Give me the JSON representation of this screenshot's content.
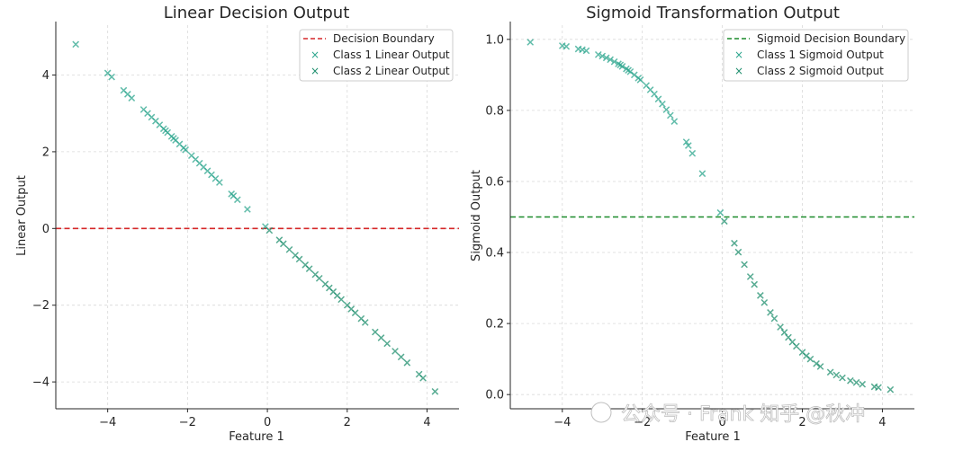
{
  "chart_data": [
    {
      "type": "scatter",
      "title": "Linear Decision Output",
      "xlabel": "Feature 1",
      "ylabel": "Linear Output",
      "xlim": [
        -5.3,
        4.8
      ],
      "ylim": [
        -4.7,
        5.3
      ],
      "xticks": [
        -4,
        -2,
        0,
        2,
        4
      ],
      "yticks": [
        -4,
        -2,
        0,
        2,
        4
      ],
      "xtick_labels": [
        "−4",
        "−2",
        "0",
        "2",
        "4"
      ],
      "ytick_labels": [
        "−4",
        "−2",
        "0",
        "2",
        "4"
      ],
      "grid": true,
      "legend_position": "top-right",
      "boundary": {
        "label": "Decision Boundary",
        "y": 0,
        "color": "#d62728",
        "style": "dashed"
      },
      "series": [
        {
          "name": "Class 1 Linear Output",
          "color": "#2ca58d",
          "marker": "x",
          "x": [
            -4.8,
            -4.0,
            -3.9,
            -3.6,
            -3.5,
            -3.4,
            -3.1,
            -3.0,
            -2.9,
            -2.8,
            -2.7,
            -2.6,
            -2.55,
            -2.5,
            -2.4,
            -2.35,
            -2.3,
            -2.2,
            -2.1,
            -2.05,
            -1.9,
            -1.8,
            -1.7,
            -1.6,
            -1.5,
            -1.4,
            -1.3,
            -1.2,
            -0.9,
            -0.85,
            -0.75,
            -0.5,
            -0.05
          ],
          "y": [
            4.8,
            4.05,
            3.95,
            3.6,
            3.5,
            3.4,
            3.1,
            3.0,
            2.9,
            2.8,
            2.7,
            2.6,
            2.55,
            2.5,
            2.4,
            2.35,
            2.3,
            2.2,
            2.1,
            2.05,
            1.9,
            1.8,
            1.7,
            1.6,
            1.5,
            1.4,
            1.3,
            1.2,
            0.9,
            0.85,
            0.75,
            0.5,
            0.05
          ]
        },
        {
          "name": "Class 2 Linear Output",
          "color": "#1f8f6e",
          "marker": "x",
          "x": [
            0.05,
            0.3,
            0.4,
            0.55,
            0.7,
            0.8,
            0.95,
            1.05,
            1.2,
            1.3,
            1.45,
            1.55,
            1.65,
            1.75,
            1.85,
            2.0,
            2.1,
            2.2,
            2.35,
            2.45,
            2.7,
            2.85,
            3.0,
            3.2,
            3.35,
            3.5,
            3.8,
            3.9,
            4.2
          ],
          "y": [
            -0.05,
            -0.3,
            -0.4,
            -0.55,
            -0.7,
            -0.8,
            -0.95,
            -1.05,
            -1.2,
            -1.3,
            -1.45,
            -1.55,
            -1.65,
            -1.75,
            -1.85,
            -2.0,
            -2.1,
            -2.2,
            -2.35,
            -2.45,
            -2.7,
            -2.85,
            -3.0,
            -3.2,
            -3.35,
            -3.5,
            -3.8,
            -3.9,
            -4.25
          ]
        }
      ]
    },
    {
      "type": "scatter",
      "title": "Sigmoid Transformation Output",
      "xlabel": "Feature 1",
      "ylabel": "Sigmoid Output",
      "xlim": [
        -5.3,
        4.8
      ],
      "ylim": [
        -0.04,
        1.04
      ],
      "xticks": [
        -4,
        -2,
        0,
        2,
        4
      ],
      "yticks": [
        0.0,
        0.2,
        0.4,
        0.6,
        0.8,
        1.0
      ],
      "xtick_labels": [
        "−4",
        "−2",
        "0",
        "2",
        "4"
      ],
      "ytick_labels": [
        "0.0",
        "0.2",
        "0.4",
        "0.6",
        "0.8",
        "1.0"
      ],
      "grid": true,
      "legend_position": "top-right",
      "boundary": {
        "label": "Sigmoid Decision Boundary",
        "y": 0.5,
        "color": "#1a8a2a",
        "style": "dashed"
      },
      "series": [
        {
          "name": "Class 1 Sigmoid Output",
          "color": "#2ca58d",
          "marker": "x",
          "x": [
            -4.8,
            -4.0,
            -3.9,
            -3.6,
            -3.5,
            -3.4,
            -3.1,
            -3.0,
            -2.9,
            -2.8,
            -2.7,
            -2.6,
            -2.55,
            -2.5,
            -2.4,
            -2.35,
            -2.3,
            -2.2,
            -2.1,
            -2.05,
            -1.9,
            -1.8,
            -1.7,
            -1.6,
            -1.5,
            -1.4,
            -1.3,
            -1.2,
            -0.9,
            -0.85,
            -0.75,
            -0.5,
            -0.05
          ],
          "y": [
            0.992,
            0.982,
            0.98,
            0.973,
            0.971,
            0.968,
            0.957,
            0.953,
            0.948,
            0.943,
            0.937,
            0.931,
            0.928,
            0.924,
            0.917,
            0.913,
            0.909,
            0.9,
            0.891,
            0.886,
            0.87,
            0.858,
            0.846,
            0.832,
            0.818,
            0.802,
            0.786,
            0.769,
            0.711,
            0.701,
            0.679,
            0.622,
            0.512
          ]
        },
        {
          "name": "Class 2 Sigmoid Output",
          "color": "#1f8f6e",
          "marker": "x",
          "x": [
            0.05,
            0.3,
            0.4,
            0.55,
            0.7,
            0.8,
            0.95,
            1.05,
            1.2,
            1.3,
            1.45,
            1.55,
            1.65,
            1.75,
            1.85,
            2.0,
            2.1,
            2.2,
            2.35,
            2.45,
            2.7,
            2.85,
            3.0,
            3.2,
            3.35,
            3.5,
            3.8,
            3.9,
            4.2
          ],
          "y": [
            0.488,
            0.426,
            0.401,
            0.366,
            0.332,
            0.31,
            0.279,
            0.259,
            0.231,
            0.214,
            0.19,
            0.175,
            0.161,
            0.148,
            0.136,
            0.119,
            0.109,
            0.1,
            0.087,
            0.079,
            0.063,
            0.055,
            0.047,
            0.039,
            0.034,
            0.029,
            0.022,
            0.02,
            0.014
          ]
        }
      ]
    }
  ],
  "watermark": "公众号 · Frank 知乎 @秋冲"
}
